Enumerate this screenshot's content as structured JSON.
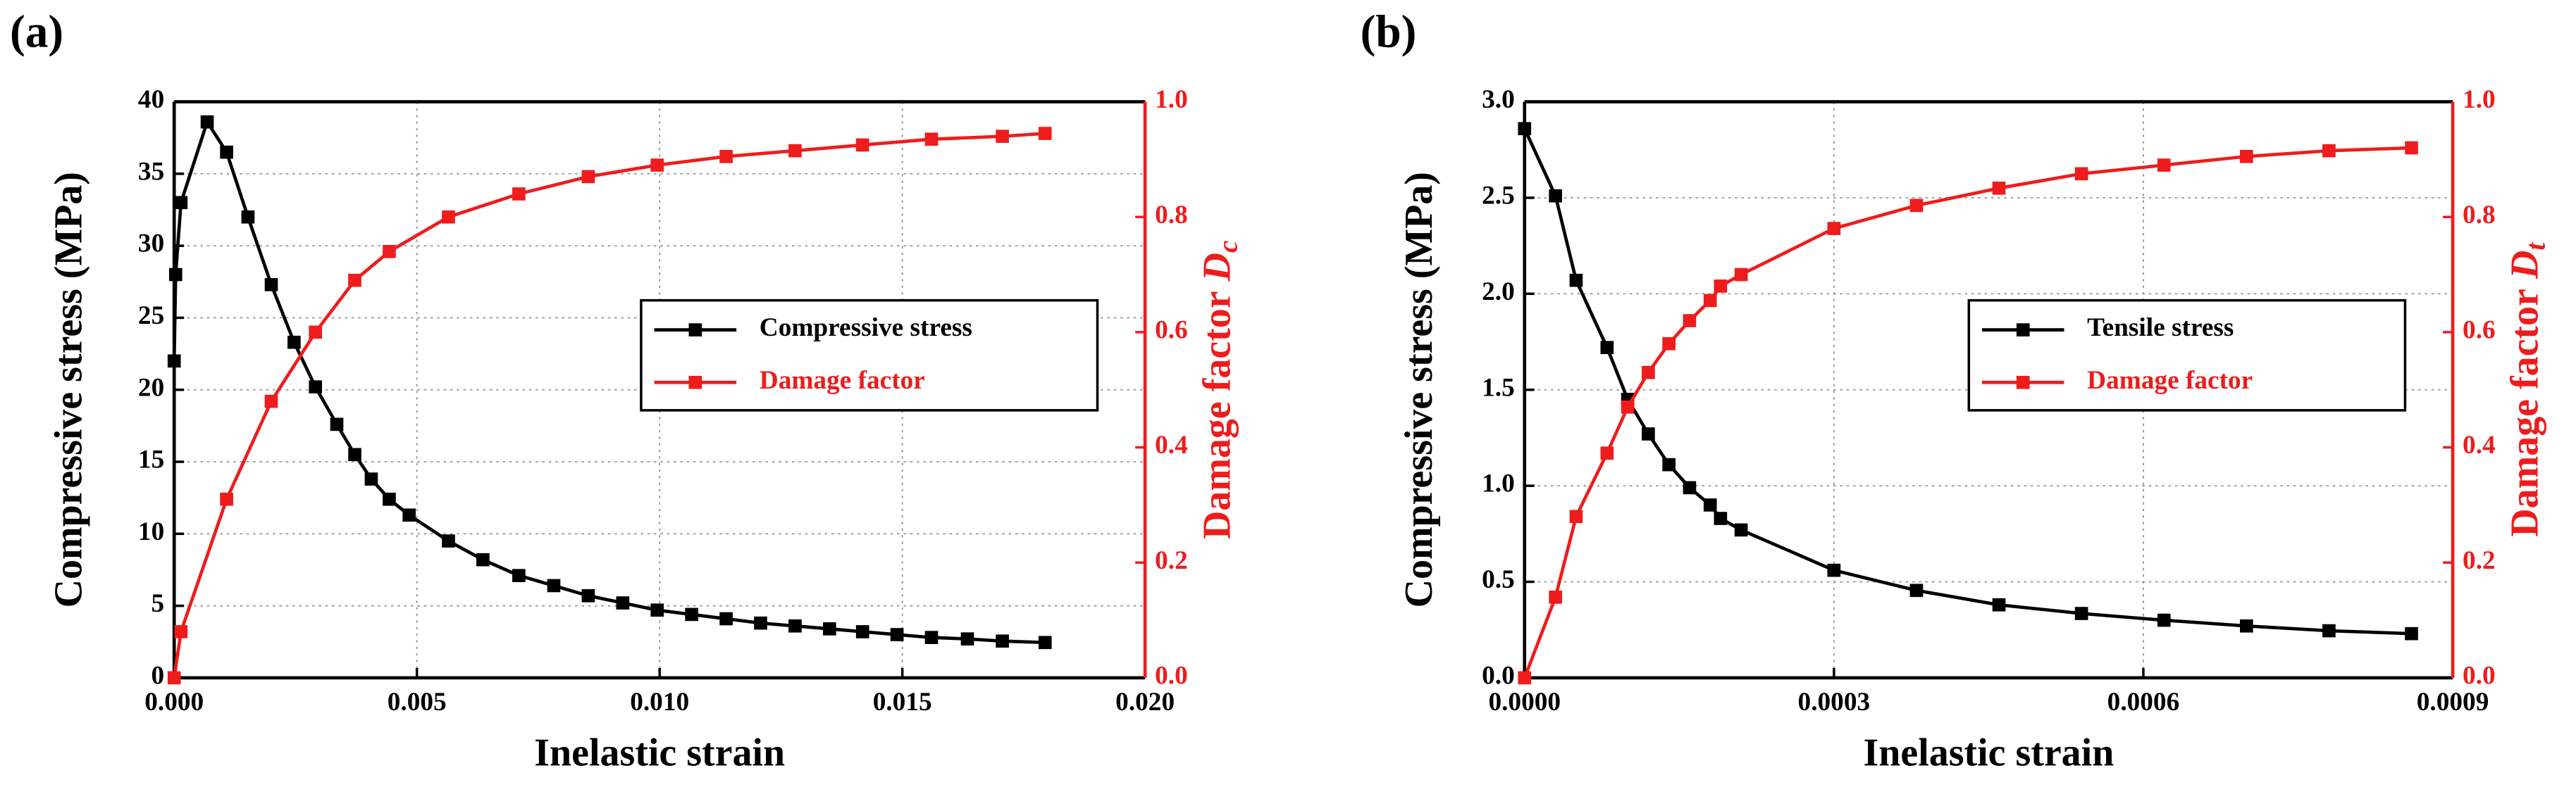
{
  "chart_data": [
    {
      "type": "line",
      "panel_label": "(a)",
      "xlabel": "Inelastic strain",
      "ylabel": "Compressive stress (MPa)",
      "y2label": "Damage factor",
      "y2label_symbol": "D",
      "y2label_subscript": "c",
      "xlim": [
        0,
        0.02
      ],
      "xticks": [
        {
          "value": 0,
          "label": "0.000"
        },
        0.005,
        {
          "value": 0.01,
          "label": "0.010"
        },
        0.015,
        {
          "value": 0.02,
          "label": "0.020"
        }
      ],
      "ylim": [
        0,
        40
      ],
      "yticks": [
        0,
        5,
        10,
        15,
        20,
        25,
        30,
        35,
        40
      ],
      "y2lim": [
        0,
        1
      ],
      "y2ticks": [
        {
          "value": 0,
          "label": "0.0"
        },
        0.2,
        0.4,
        0.6,
        0.8,
        {
          "value": 1,
          "label": "1.0"
        }
      ],
      "grid": true,
      "legend": "right",
      "series": [
        {
          "name": "Compressive stress",
          "color": "#000000",
          "x": [
            0,
            3e-05,
            0.00014,
            0.00068,
            0.00108,
            0.00152,
            0.002,
            0.00247,
            0.00291,
            0.00335,
            0.00372,
            0.00406,
            0.00443,
            0.00484,
            0.00565,
            0.00636,
            0.0071,
            0.00782,
            0.00853,
            0.00924,
            0.00995,
            0.01066,
            0.01137,
            0.01208,
            0.01279,
            0.0135,
            0.01418,
            0.01489,
            0.0156,
            0.01634,
            0.01706,
            0.01794
          ],
          "values": [
            22,
            28,
            33,
            38.6,
            36.5,
            32,
            27.3,
            23.3,
            20.2,
            17.6,
            15.5,
            13.8,
            12.4,
            11.3,
            9.5,
            8.2,
            7.1,
            6.4,
            5.7,
            5.2,
            4.7,
            4.4,
            4.1,
            3.8,
            3.6,
            3.4,
            3.2,
            3.0,
            2.8,
            2.7,
            2.55,
            2.45
          ]
        },
        {
          "name": "Damage factor",
          "color": "#ee1c1c",
          "axis": "y2",
          "x": [
            0,
            0.00014,
            0.00108,
            0.002,
            0.00291,
            0.00372,
            0.00443,
            0.00565,
            0.0071,
            0.00853,
            0.00995,
            0.01137,
            0.01279,
            0.01418,
            0.0156,
            0.01706,
            0.01794
          ],
          "values": [
            0,
            0.08,
            0.31,
            0.48,
            0.6,
            0.69,
            0.74,
            0.8,
            0.84,
            0.87,
            0.89,
            0.905,
            0.915,
            0.925,
            0.935,
            0.94,
            0.945
          ]
        }
      ]
    },
    {
      "type": "line",
      "panel_label": "(b)",
      "xlabel": "Inelastic strain",
      "ylabel": "Compressive stress (MPa)",
      "y2label": "Damage factor",
      "y2label_symbol": "D",
      "y2label_subscript": "t",
      "xlim": [
        0,
        0.0009
      ],
      "xticks": [
        {
          "value": 0,
          "label": "0.0000"
        },
        0.0003,
        0.0006,
        0.0009
      ],
      "ylim": [
        0,
        3
      ],
      "yticks": [
        {
          "value": 0,
          "label": "0.0"
        },
        0.5,
        {
          "value": 1,
          "label": "1.0"
        },
        1.5,
        {
          "value": 2,
          "label": "2.0"
        },
        2.5,
        {
          "value": 3,
          "label": "3.0"
        }
      ],
      "y2lim": [
        0,
        1
      ],
      "y2ticks": [
        {
          "value": 0,
          "label": "0.0"
        },
        0.2,
        0.4,
        0.6,
        0.8,
        {
          "value": 1,
          "label": "1.0"
        }
      ],
      "grid": true,
      "legend": "right",
      "series": [
        {
          "name": "Tensile stress",
          "color": "#000000",
          "x": [
            0,
            3e-05,
            5e-05,
            8e-05,
            0.0001,
            0.00012,
            0.00014,
            0.00016,
            0.00018,
            0.00019,
            0.00021,
            0.0003,
            0.00038,
            0.00046,
            0.00054,
            0.00062,
            0.0007,
            0.00078,
            0.00086
          ],
          "values": [
            2.86,
            2.51,
            2.07,
            1.72,
            1.45,
            1.27,
            1.11,
            0.99,
            0.9,
            0.83,
            0.77,
            0.56,
            0.455,
            0.38,
            0.335,
            0.3,
            0.27,
            0.245,
            0.23
          ]
        },
        {
          "name": "Damage factor",
          "color": "#ee1c1c",
          "axis": "y2",
          "x": [
            0,
            3e-05,
            5e-05,
            8e-05,
            0.0001,
            0.00012,
            0.00014,
            0.00016,
            0.00018,
            0.00019,
            0.00021,
            0.0003,
            0.00038,
            0.00046,
            0.00054,
            0.00062,
            0.0007,
            0.00078,
            0.00086
          ],
          "values": [
            0,
            0.14,
            0.28,
            0.39,
            0.47,
            0.53,
            0.58,
            0.62,
            0.655,
            0.68,
            0.7,
            0.78,
            0.82,
            0.85,
            0.875,
            0.89,
            0.905,
            0.915,
            0.92
          ]
        }
      ]
    }
  ]
}
